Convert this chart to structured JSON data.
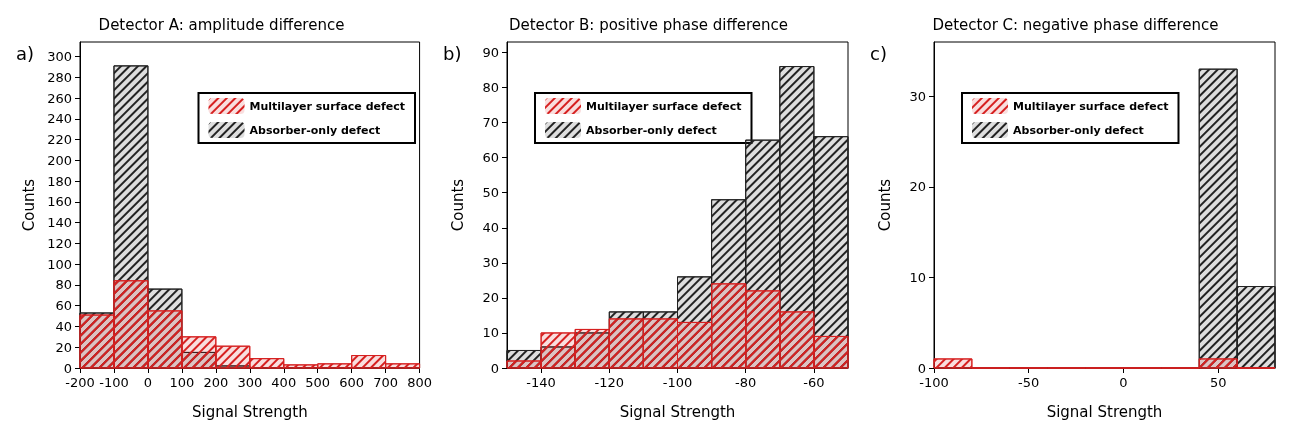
{
  "chart_data": [
    {
      "type": "histogram",
      "title": "Detector A: amplitude difference",
      "xlabel": "Signal Strength",
      "ylabel": "Counts",
      "annotations": [
        "a)"
      ],
      "bins": [
        -200,
        -100,
        0,
        100,
        200,
        300,
        400,
        500,
        600,
        700,
        800
      ],
      "series": [
        {
          "name": "Multilayer surface defect",
          "color": "#d62020",
          "values": [
            51,
            84,
            55,
            30,
            21,
            9,
            3,
            4,
            12,
            4
          ]
        },
        {
          "name": "Absorber-only defect",
          "color": "#222222",
          "values": [
            53,
            291,
            76,
            15,
            2,
            0,
            0,
            0,
            0,
            0
          ]
        }
      ],
      "xlim": [
        -200,
        800
      ],
      "xticks": [
        -200,
        -100,
        0,
        100,
        200,
        300,
        400,
        500,
        600,
        700,
        800
      ],
      "ylim": [
        0,
        314
      ],
      "yticks": [
        0,
        20,
        40,
        60,
        80,
        100,
        120,
        140,
        160,
        180,
        200,
        220,
        240,
        260,
        280,
        300
      ],
      "legend": "top right",
      "grid": false
    },
    {
      "type": "histogram",
      "title": "Detector B: positive phase difference",
      "xlabel": "Signal Strength",
      "ylabel": "Counts",
      "annotations": [
        "b)"
      ],
      "bins": [
        -150,
        -140,
        -130,
        -120,
        -110,
        -100,
        -90,
        -80,
        -70,
        -60,
        -50
      ],
      "series": [
        {
          "name": "Multilayer surface defect",
          "color": "#d62020",
          "values": [
            2,
            10,
            11,
            14,
            14,
            13,
            24,
            22,
            16,
            9
          ]
        },
        {
          "name": "Absorber-only defect",
          "color": "#222222",
          "values": [
            5,
            6,
            10,
            16,
            16,
            26,
            48,
            65,
            86,
            66
          ]
        }
      ],
      "xlim": [
        -150,
        -50
      ],
      "xticks": [
        -140,
        -120,
        -100,
        -80,
        -60
      ],
      "ylim": [
        0,
        93
      ],
      "yticks": [
        0,
        10,
        20,
        30,
        40,
        50,
        60,
        70,
        80,
        90
      ],
      "legend": "top left",
      "grid": false
    },
    {
      "type": "histogram",
      "title": "Detector C: negative phase difference",
      "xlabel": "Signal Strength",
      "ylabel": "Counts",
      "annotations": [
        "c)"
      ],
      "bins": [
        -100,
        -80,
        -60,
        -40,
        -20,
        0,
        20,
        40,
        60,
        80
      ],
      "series": [
        {
          "name": "Multilayer surface defect",
          "color": "#d62020",
          "values": [
            1,
            0,
            0,
            0,
            0,
            0,
            0,
            1,
            0
          ]
        },
        {
          "name": "Absorber-only defect",
          "color": "#222222",
          "values": [
            0,
            0,
            0,
            0,
            0,
            0,
            0,
            33,
            9
          ]
        }
      ],
      "xlim": [
        -100,
        80
      ],
      "xticks": [
        -100,
        -50,
        0,
        50
      ],
      "ylim": [
        0,
        36
      ],
      "yticks": [
        0,
        10,
        20,
        30
      ],
      "legend": "top left",
      "grid": false
    }
  ]
}
